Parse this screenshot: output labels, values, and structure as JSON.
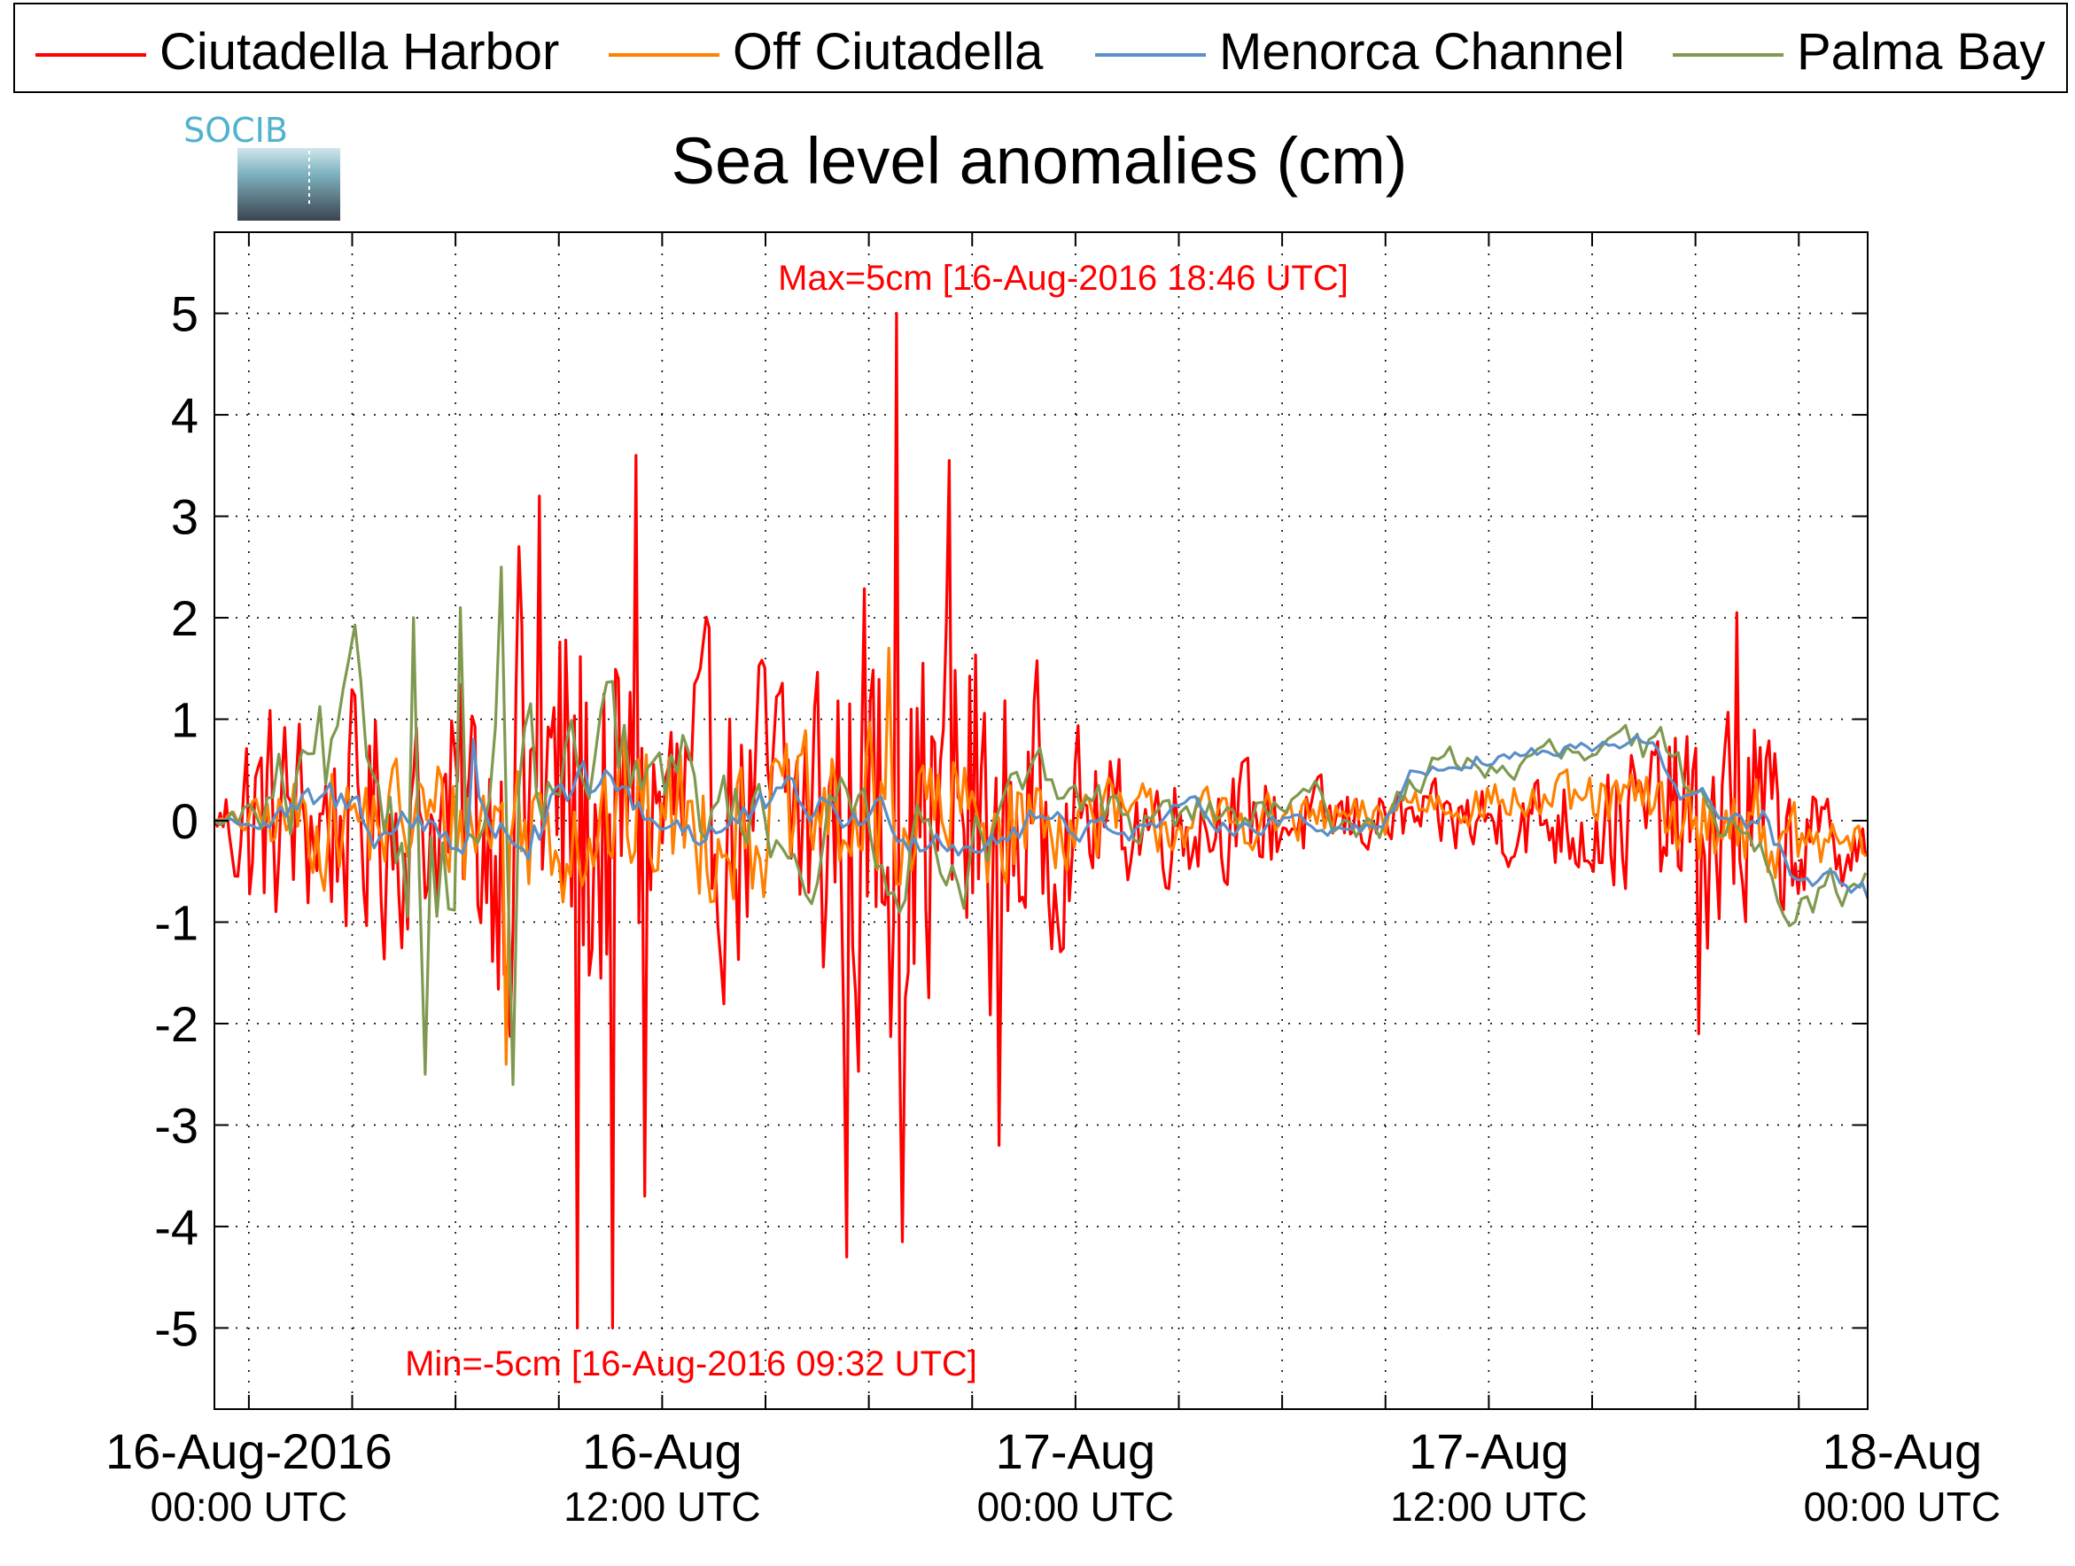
{
  "chart_data": {
    "type": "line",
    "title": "Sea level anomalies (cm)",
    "logo_text": "SOCIB",
    "ylim": [
      -5.8,
      5.8
    ],
    "yticks": [
      -5,
      -4,
      -3,
      -2,
      -1,
      0,
      1,
      2,
      3,
      4,
      5
    ],
    "ytick_labels": [
      "-5",
      "-4",
      "-3",
      "-2",
      "-1",
      "0",
      "1",
      "2",
      "3",
      "4",
      "5"
    ],
    "xlim_hours": [
      -1,
      47
    ],
    "x_major_ticks": [
      {
        "h": 0,
        "line1": "16-Aug-2016",
        "line2": "00:00 UTC"
      },
      {
        "h": 12,
        "line1": "16-Aug",
        "line2": "12:00 UTC"
      },
      {
        "h": 24,
        "line1": "17-Aug",
        "line2": "00:00 UTC"
      },
      {
        "h": 36,
        "line1": "17-Aug",
        "line2": "12:00 UTC"
      },
      {
        "h": 48,
        "line1": "18-Aug",
        "line2": "00:00 UTC"
      }
    ],
    "x_minor_ticks_hours": [
      0,
      3,
      6,
      9,
      12,
      15,
      18,
      21,
      24,
      27,
      30,
      33,
      36,
      39,
      42,
      45
    ],
    "grid": true,
    "legend_position": "top",
    "annotations": {
      "max": {
        "text": "Max=5cm [16-Aug-2016 18:46 UTC]",
        "value": 5.0
      },
      "min": {
        "text": "Min=-5cm [16-Aug-2016 09:32 UTC]",
        "value": -5.0
      }
    },
    "series": [
      {
        "name": "Ciutadella Harbor",
        "color": "#ff0000",
        "envelope": [
          [
            -1,
            0
          ],
          [
            0,
            1.7
          ],
          [
            2,
            1.5
          ],
          [
            4,
            1.8
          ],
          [
            5,
            1.4
          ],
          [
            6,
            1.8
          ],
          [
            7,
            2.3
          ],
          [
            8,
            3.2
          ],
          [
            9,
            3.5
          ],
          [
            10,
            3.4
          ],
          [
            11,
            2.5
          ],
          [
            12,
            2.2
          ],
          [
            13,
            2.2
          ],
          [
            14,
            2.0
          ],
          [
            15,
            2.4
          ],
          [
            16,
            2.6
          ],
          [
            17,
            3.2
          ],
          [
            18,
            3.5
          ],
          [
            19,
            2.8
          ],
          [
            20,
            2.8
          ],
          [
            21,
            3.3
          ],
          [
            22,
            2.2
          ],
          [
            23,
            1.8
          ],
          [
            24,
            1.2
          ],
          [
            25,
            0.9
          ],
          [
            26,
            0.8
          ],
          [
            27,
            0.8
          ],
          [
            28,
            0.7
          ],
          [
            29,
            0.8
          ],
          [
            30,
            0.7
          ],
          [
            31,
            0.5
          ],
          [
            32,
            0.5
          ],
          [
            33,
            0.4
          ],
          [
            34,
            0.4
          ],
          [
            35,
            0.5
          ],
          [
            36,
            0.6
          ],
          [
            37,
            0.6
          ],
          [
            38,
            0.7
          ],
          [
            39,
            0.9
          ],
          [
            40,
            1.0
          ],
          [
            41,
            1.2
          ],
          [
            42,
            1.7
          ],
          [
            43,
            2.0
          ],
          [
            44,
            1.6
          ],
          [
            45,
            0.8
          ],
          [
            46,
            0.6
          ],
          [
            47,
            0.5
          ]
        ],
        "peaks": [
          [
            7.8,
            2.7
          ],
          [
            8.4,
            3.2
          ],
          [
            9.5,
            -5.0
          ],
          [
            10.6,
            -5.1
          ],
          [
            11.2,
            3.6
          ],
          [
            11.5,
            -3.7
          ],
          [
            17.4,
            -4.3
          ],
          [
            18.77,
            5.0
          ],
          [
            19.0,
            -4.15
          ],
          [
            20.3,
            3.55
          ],
          [
            21.8,
            -3.2
          ],
          [
            42.1,
            -2.1
          ],
          [
            43.2,
            2.05
          ]
        ]
      },
      {
        "name": "Off Ciutadella",
        "color": "#ff8000",
        "envelope": [
          [
            -1,
            0
          ],
          [
            2,
            0.8
          ],
          [
            5,
            0.9
          ],
          [
            7,
            1.0
          ],
          [
            9,
            1.1
          ],
          [
            12,
            1.1
          ],
          [
            16,
            1.0
          ],
          [
            18,
            1.2
          ],
          [
            20,
            1.1
          ],
          [
            22,
            0.9
          ],
          [
            24,
            0.6
          ],
          [
            28,
            0.4
          ],
          [
            32,
            0.3
          ],
          [
            36,
            0.3
          ],
          [
            40,
            0.4
          ],
          [
            42,
            0.6
          ],
          [
            44,
            0.6
          ],
          [
            47,
            0.3
          ]
        ],
        "peaks": [
          [
            18.6,
            1.7
          ],
          [
            7.5,
            -2.4
          ]
        ]
      },
      {
        "name": "Menorca Channel",
        "color": "#5a8fc7",
        "envelope": [
          [
            -1,
            0
          ],
          [
            2,
            0.5
          ],
          [
            5,
            0.6
          ],
          [
            7,
            0.7
          ],
          [
            9,
            0.6
          ],
          [
            12,
            0.5
          ],
          [
            16,
            0.4
          ],
          [
            20,
            0.4
          ],
          [
            24,
            0.3
          ],
          [
            28,
            0.2
          ],
          [
            32,
            0.2
          ],
          [
            36,
            0.2
          ],
          [
            40,
            0.2
          ],
          [
            44,
            0.3
          ],
          [
            47,
            0.3
          ]
        ],
        "peaks": [
          [
            6.5,
            0.8
          ]
        ]
      },
      {
        "name": "Palma Bay",
        "color": "#7f9950",
        "envelope": [
          [
            -1,
            0
          ],
          [
            1,
            1.2
          ],
          [
            3,
            1.6
          ],
          [
            5,
            1.8
          ],
          [
            6,
            2.0
          ],
          [
            7,
            2.2
          ],
          [
            8,
            1.6
          ],
          [
            10,
            1.4
          ],
          [
            12,
            1.2
          ],
          [
            14,
            1.0
          ],
          [
            16,
            1.0
          ],
          [
            18,
            1.0
          ],
          [
            20,
            0.9
          ],
          [
            22,
            0.8
          ],
          [
            24,
            0.6
          ],
          [
            28,
            0.5
          ],
          [
            32,
            0.4
          ],
          [
            36,
            0.3
          ],
          [
            40,
            0.4
          ],
          [
            44,
            0.5
          ],
          [
            47,
            0.4
          ]
        ],
        "peaks": [
          [
            4.8,
            2.0
          ],
          [
            6.1,
            2.1
          ],
          [
            7.3,
            2.5
          ],
          [
            5.2,
            -2.5
          ],
          [
            7.6,
            -2.6
          ]
        ]
      }
    ]
  }
}
